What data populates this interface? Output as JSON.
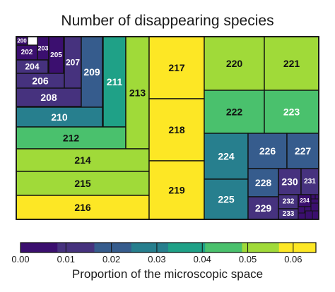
{
  "chart_data": {
    "type": "treemap",
    "title": "Number of disappearing species",
    "colorbar": {
      "label": "Proportion of the microscopic space",
      "ticks": [
        "0.00",
        "0.01",
        "0.02",
        "0.03",
        "0.04",
        "0.05",
        "0.06"
      ],
      "range": [
        0.0,
        0.065
      ],
      "colors": [
        "#3b0f6f",
        "#46327e",
        "#365c8d",
        "#277f8e",
        "#1fa187",
        "#4ac16d",
        "#a0da39",
        "#fde725"
      ]
    },
    "cells": [
      {
        "label": "200",
        "value": 0.001
      },
      {
        "label": "202",
        "value": 0.002
      },
      {
        "label": "203",
        "value": 0.002
      },
      {
        "label": "204",
        "value": 0.005
      },
      {
        "label": "205",
        "value": 0.004
      },
      {
        "label": "206",
        "value": 0.008
      },
      {
        "label": "207",
        "value": 0.01
      },
      {
        "label": "208",
        "value": 0.013
      },
      {
        "label": "209",
        "value": 0.017
      },
      {
        "label": "210",
        "value": 0.026
      },
      {
        "label": "211",
        "value": 0.038
      },
      {
        "label": "212",
        "value": 0.047
      },
      {
        "label": "213",
        "value": 0.055
      },
      {
        "label": "214",
        "value": 0.055
      },
      {
        "label": "215",
        "value": 0.058
      },
      {
        "label": "216",
        "value": 0.062
      },
      {
        "label": "217",
        "value": 0.063
      },
      {
        "label": "218",
        "value": 0.063
      },
      {
        "label": "219",
        "value": 0.062
      },
      {
        "label": "220",
        "value": 0.055
      },
      {
        "label": "221",
        "value": 0.052
      },
      {
        "label": "222",
        "value": 0.047
      },
      {
        "label": "223",
        "value": 0.044
      },
      {
        "label": "224",
        "value": 0.032
      },
      {
        "label": "225",
        "value": 0.03
      },
      {
        "label": "226",
        "value": 0.021
      },
      {
        "label": "227",
        "value": 0.019
      },
      {
        "label": "228",
        "value": 0.014
      },
      {
        "label": "229",
        "value": 0.009
      },
      {
        "label": "230",
        "value": 0.008
      },
      {
        "label": "231",
        "value": 0.006
      },
      {
        "label": "232",
        "value": 0.005
      },
      {
        "label": "233",
        "value": 0.005
      },
      {
        "label": "234",
        "value": 0.003
      }
    ]
  }
}
